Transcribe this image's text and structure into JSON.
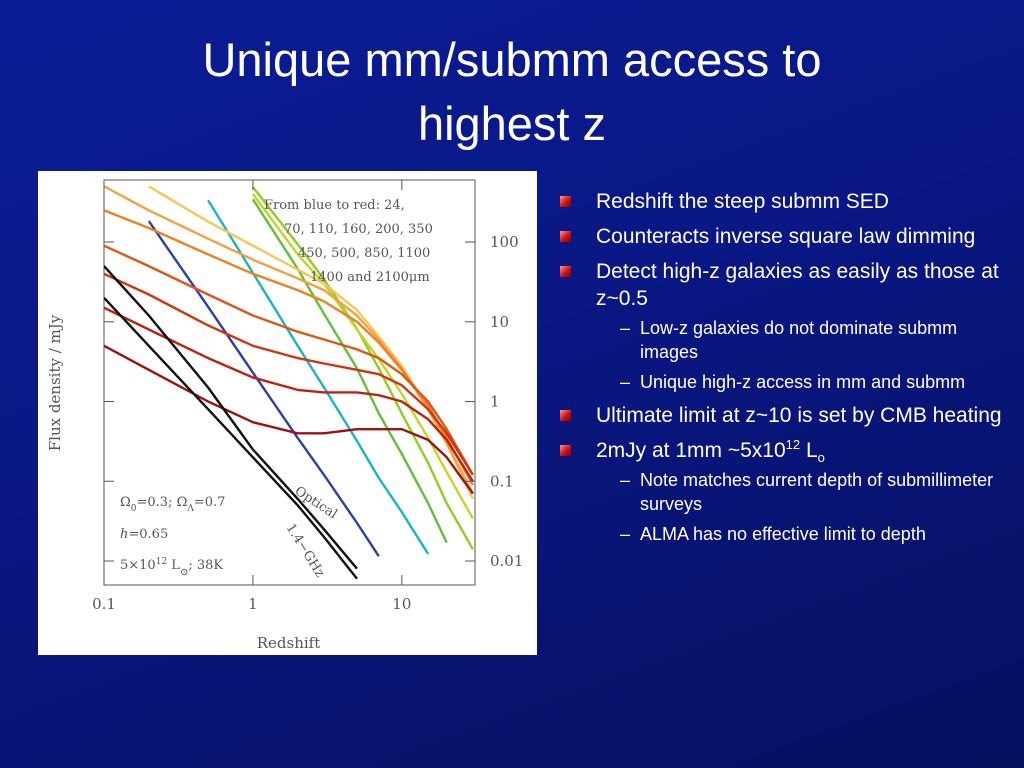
{
  "title": [
    "Unique mm/submm access to",
    "highest z"
  ],
  "bullets": [
    {
      "text": "Redshift the steep submm SED"
    },
    {
      "text": "Counteracts inverse square law dimming"
    },
    {
      "text": "Detect high-z galaxies as easily as those at z~0.5",
      "sub": [
        "Low-z galaxies do not dominate submm images",
        "Unique high-z access in mm and submm"
      ]
    },
    {
      "text": "Ultimate limit at z~10 is set by CMB heating"
    },
    {
      "parts": [
        "2mJy at 1mm ~5x10",
        "12",
        " L",
        "o"
      ],
      "sub": [
        "Note matches current depth of submillimeter surveys",
        "ALMA has no effective limit to depth"
      ]
    }
  ],
  "chart_data": {
    "type": "line",
    "x_label": "Redshift",
    "y_label": "Flux density / mJy",
    "log_x": true,
    "log_y": true,
    "xlim": [
      0.1,
      31
    ],
    "ylim": [
      0.005,
      600
    ],
    "xticks": [
      0.1,
      1,
      10
    ],
    "yticks": [
      100,
      10,
      1,
      0.1,
      0.01
    ],
    "annotations": [
      "From blue to red: 24,",
      "70, 110, 160, 200, 350",
      "450, 500, 850, 1100",
      "1400 and 2100μm",
      "Optical",
      "1.4−GHz"
    ],
    "params": [
      [
        "Ω",
        "0",
        "=0.3;  Ω",
        "Λ",
        "=0.7"
      ],
      [
        "h",
        "=0.65"
      ],
      [
        "5×10",
        "12",
        " L",
        "⊙",
        "; 38K"
      ]
    ],
    "x": [
      0.1,
      0.2,
      0.5,
      1,
      2,
      3,
      5,
      7,
      10,
      15,
      20,
      30
    ],
    "series": [
      {
        "color": "#2a3fa8",
        "values": [
          null,
          183,
          15.4,
          2.3,
          0.35,
          0.12,
          0.03,
          0.0115,
          null,
          null,
          null,
          null
        ]
      },
      {
        "color": "#17b4c4",
        "values": [
          null,
          null,
          335,
          41,
          5,
          1.5,
          0.32,
          0.11,
          0.041,
          0.0123,
          null,
          null
        ]
      },
      {
        "color": "#5cc238",
        "values": [
          null,
          null,
          null,
          345,
          46,
          12.6,
          2.6,
          0.71,
          0.22,
          0.053,
          0.017,
          null
        ]
      },
      {
        "color": "#8ccf22",
        "values": [
          null,
          null,
          null,
          490,
          94,
          34,
          8.2,
          2.6,
          0.71,
          0.17,
          0.053,
          0.014
        ]
      },
      {
        "color": "#c4d424",
        "values": [
          null,
          null,
          null,
          400,
          70,
          30,
          8,
          3.4,
          1.25,
          0.35,
          0.13,
          0.034
        ]
      },
      {
        "color": "#f6c658",
        "values": [
          null,
          500,
          180,
          90,
          45,
          30,
          14,
          6.5,
          2.8,
          0.8,
          0.3,
          0.06
        ]
      },
      {
        "color": "#f2a040",
        "values": [
          500,
          250,
          110,
          60,
          35,
          25,
          12,
          6,
          2.6,
          0.8,
          0.3,
          0.07
        ]
      },
      {
        "color": "#ef8020",
        "values": [
          250,
          150,
          70,
          40,
          25,
          18,
          10,
          5.5,
          2.5,
          0.9,
          0.35,
          0.09
        ]
      },
      {
        "color": "#e05512",
        "values": [
          90,
          50,
          22,
          12,
          7.5,
          6,
          4.5,
          3.5,
          2.2,
          1.0,
          0.45,
          0.12
        ]
      },
      {
        "color": "#d03410",
        "values": [
          40,
          22,
          9,
          5,
          3.5,
          3,
          2.5,
          2.2,
          1.6,
          0.8,
          0.4,
          0.12
        ]
      },
      {
        "color": "#c02010",
        "values": [
          15,
          8,
          3.5,
          2,
          1.4,
          1.3,
          1.3,
          1.2,
          1.0,
          0.6,
          0.33,
          0.1
        ]
      },
      {
        "color": "#a01010",
        "values": [
          5,
          2.5,
          1,
          0.55,
          0.4,
          0.4,
          0.45,
          0.45,
          0.45,
          0.33,
          0.2,
          0.07
        ]
      },
      {
        "color": "#111111",
        "values": [
          20,
          5,
          0.8,
          0.2,
          0.05,
          0.02,
          0.006,
          null,
          null,
          null,
          null,
          null
        ]
      },
      {
        "color": "#111111",
        "values": [
          50,
          12,
          1.5,
          0.25,
          0.06,
          0.025,
          0.008,
          null,
          null,
          null,
          null,
          null
        ]
      }
    ]
  }
}
